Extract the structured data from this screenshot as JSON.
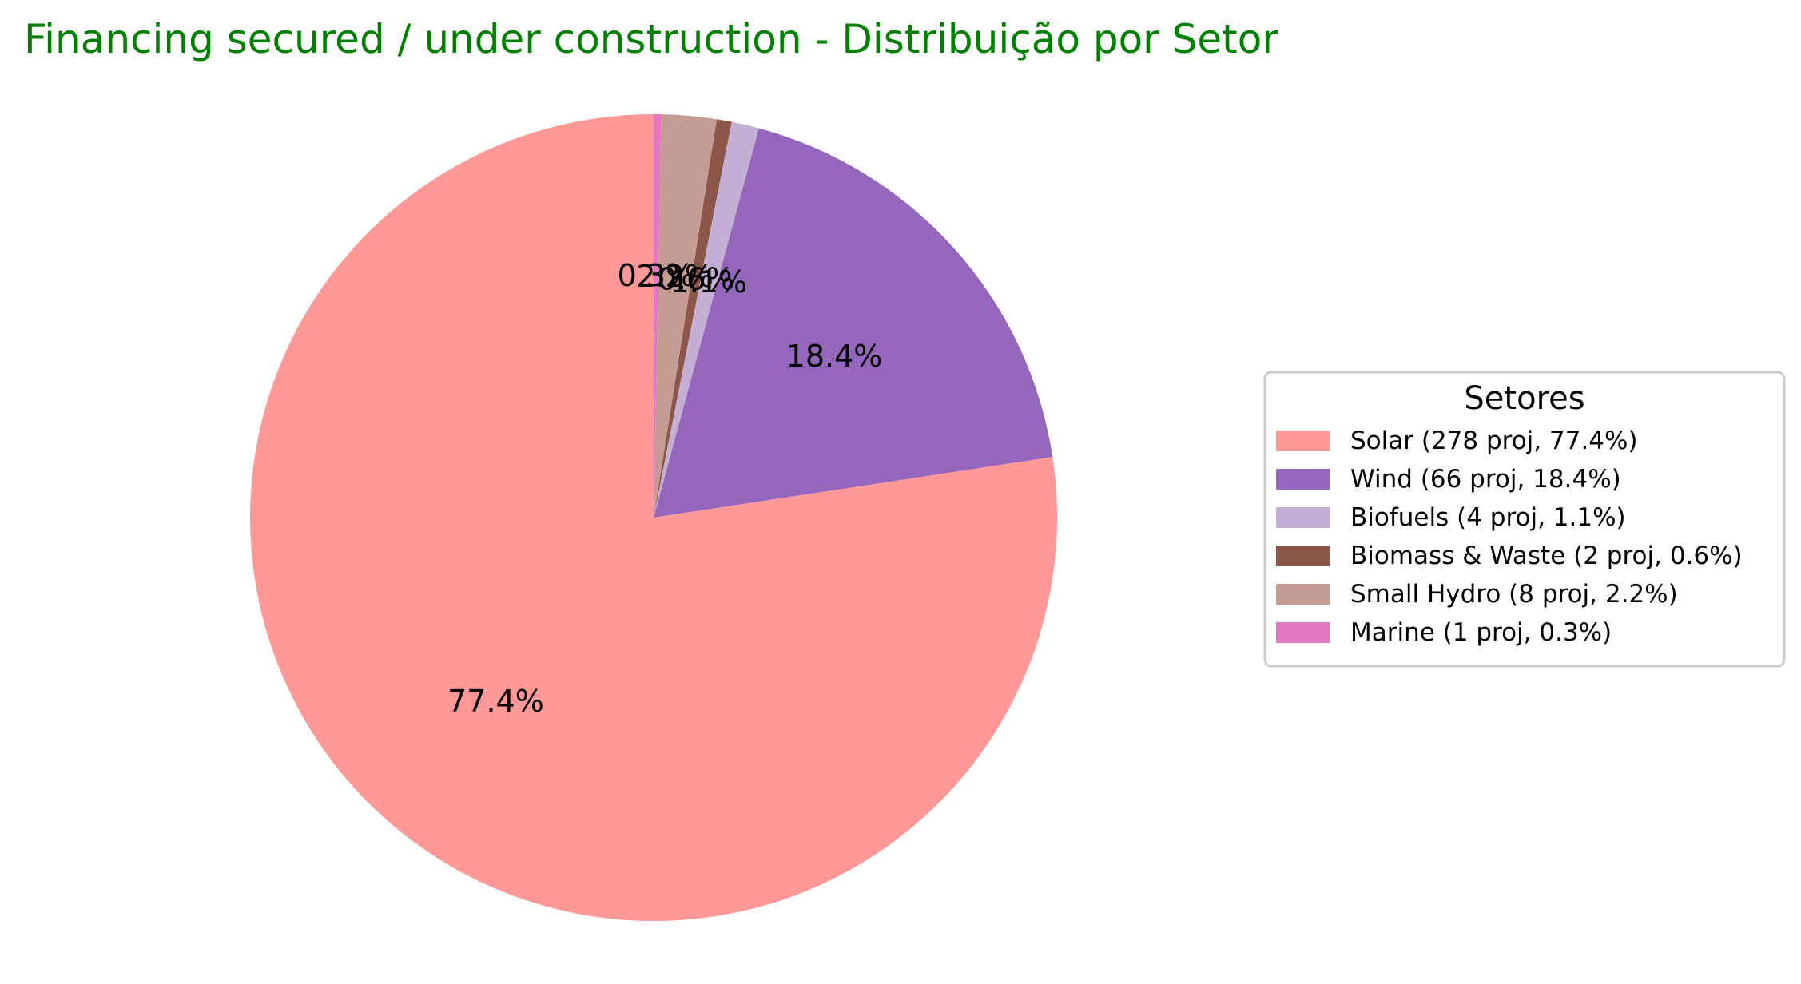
{
  "chart_data": {
    "type": "pie",
    "title": "Financing secured / under construction - Distribuição por Setor",
    "title_color": "#008000",
    "start_angle_deg": 90,
    "direction": "counterclockwise",
    "slices": [
      {
        "label": "Solar",
        "legend": "Solar (278 proj, 77.4%)",
        "projects": 278,
        "percent": 77.4,
        "pct_label": "77.4%",
        "color": "#ff9896"
      },
      {
        "label": "Wind",
        "legend": "Wind (66 proj, 18.4%)",
        "projects": 66,
        "percent": 18.4,
        "pct_label": "18.4%",
        "color": "#9467bd"
      },
      {
        "label": "Biofuels",
        "legend": "Biofuels (4 proj, 1.1%)",
        "projects": 4,
        "percent": 1.1,
        "pct_label": "1.1%",
        "color": "#c5b0d5"
      },
      {
        "label": "Biomass & Waste",
        "legend": "Biomass & Waste (2 proj, 0.6%)",
        "projects": 2,
        "percent": 0.6,
        "pct_label": "0.6%",
        "color": "#8c564b"
      },
      {
        "label": "Small Hydro",
        "legend": "Small Hydro (8 proj, 2.2%)",
        "projects": 8,
        "percent": 2.2,
        "pct_label": "2.2%",
        "color": "#c49c94"
      },
      {
        "label": "Marine",
        "legend": "Marine (1 proj, 0.3%)",
        "projects": 1,
        "percent": 0.3,
        "pct_label": "0.3%",
        "color": "#e377c2"
      }
    ],
    "legend": {
      "title": "Setores",
      "placement": "right"
    }
  }
}
